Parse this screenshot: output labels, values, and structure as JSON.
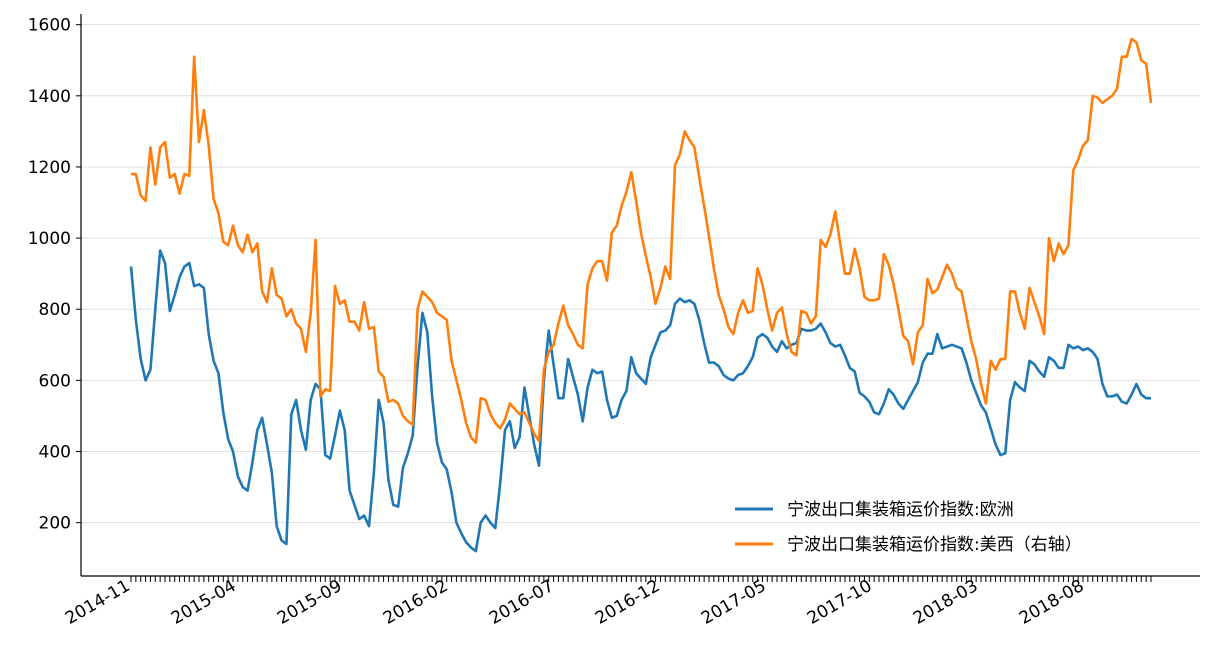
{
  "chart_data": {
    "type": "line",
    "title": "",
    "xlabel": "",
    "ylabel": "",
    "x_tick_labels": [
      "2014-11",
      "2015-04",
      "2015-09",
      "2016-02",
      "2016-07",
      "2016-12",
      "2017-05",
      "2017-10",
      "2018-03",
      "2018-08"
    ],
    "y_ticks": [
      200,
      400,
      600,
      800,
      1000,
      1200,
      1400,
      1600
    ],
    "ylim": [
      50,
      1630
    ],
    "grid": "horizontal",
    "legend_position": "lower-right",
    "series": [
      {
        "name": "宁波出口集装箱运价指数:欧洲",
        "color": "#1f77b4",
        "axis": "left",
        "values": [
          920,
          770,
          660,
          600,
          630,
          800,
          965,
          930,
          795,
          840,
          890,
          920,
          930,
          865,
          870,
          860,
          730,
          655,
          620,
          510,
          435,
          400,
          330,
          300,
          290,
          370,
          460,
          495,
          420,
          340,
          190,
          150,
          140,
          505,
          545,
          460,
          405,
          545,
          590,
          575,
          390,
          380,
          445,
          515,
          460,
          290,
          250,
          210,
          220,
          190,
          340,
          545,
          480,
          320,
          250,
          245,
          355,
          395,
          445,
          640,
          790,
          735,
          555,
          425,
          370,
          350,
          285,
          200,
          170,
          145,
          130,
          120,
          200,
          220,
          200,
          185,
          310,
          460,
          485,
          410,
          440,
          580,
          500,
          420,
          360,
          600,
          740,
          645,
          550,
          550,
          660,
          610,
          560,
          485,
          580,
          630,
          620,
          625,
          545,
          495,
          500,
          545,
          570,
          665,
          620,
          605,
          590,
          665,
          700,
          735,
          740,
          755,
          815,
          830,
          820,
          825,
          815,
          770,
          705,
          650,
          650,
          640,
          615,
          605,
          600,
          615,
          620,
          640,
          665,
          720,
          730,
          720,
          695,
          680,
          710,
          690,
          700,
          705,
          745,
          740,
          740,
          745,
          760,
          735,
          705,
          695,
          700,
          670,
          635,
          625,
          565,
          555,
          540,
          510,
          505,
          535,
          575,
          560,
          535,
          520,
          545,
          570,
          595,
          650,
          675,
          675,
          730,
          690,
          695,
          700,
          695,
          690,
          650,
          600,
          565,
          530,
          510,
          465,
          420,
          390,
          395,
          545,
          595,
          580,
          570,
          655,
          645,
          625,
          610,
          665,
          655,
          635,
          635,
          700,
          690,
          695,
          685,
          690,
          680,
          660,
          590,
          555,
          555,
          560,
          540,
          535,
          560,
          590,
          560,
          550,
          550
        ]
      },
      {
        "name": "宁波出口集装箱运价指数:美西（右轴）",
        "color": "#ff7f0e",
        "axis": "right",
        "values": [
          1180,
          1180,
          1120,
          1105,
          1255,
          1150,
          1255,
          1270,
          1170,
          1180,
          1125,
          1180,
          1175,
          1510,
          1270,
          1360,
          1260,
          1110,
          1070,
          990,
          980,
          1035,
          980,
          960,
          1010,
          960,
          985,
          850,
          820,
          915,
          840,
          830,
          780,
          800,
          760,
          745,
          680,
          790,
          995,
          555,
          575,
          570,
          865,
          815,
          825,
          765,
          765,
          740,
          820,
          745,
          750,
          625,
          610,
          540,
          545,
          535,
          500,
          485,
          475,
          800,
          850,
          835,
          820,
          790,
          780,
          770,
          655,
          600,
          545,
          480,
          440,
          425,
          550,
          545,
          505,
          480,
          465,
          490,
          535,
          520,
          505,
          510,
          480,
          450,
          430,
          630,
          680,
          700,
          760,
          810,
          755,
          730,
          700,
          690,
          870,
          915,
          935,
          935,
          880,
          1015,
          1035,
          1090,
          1130,
          1185,
          1105,
          1015,
          950,
          890,
          815,
          860,
          920,
          885,
          1205,
          1235,
          1300,
          1275,
          1255,
          1170,
          1090,
          1005,
          915,
          840,
          800,
          750,
          730,
          790,
          825,
          790,
          795,
          915,
          870,
          800,
          740,
          790,
          805,
          730,
          680,
          670,
          795,
          790,
          760,
          780,
          995,
          975,
          1010,
          1075,
          985,
          900,
          900,
          970,
          915,
          835,
          825,
          825,
          830,
          955,
          925,
          870,
          800,
          725,
          710,
          645,
          735,
          755,
          885,
          845,
          855,
          890,
          925,
          900,
          860,
          850,
          780,
          710,
          660,
          590,
          535,
          655,
          630,
          660,
          660,
          850,
          850,
          790,
          745,
          860,
          820,
          780,
          730,
          1000,
          935,
          985,
          955,
          980,
          1190,
          1220,
          1260,
          1275,
          1400,
          1395,
          1380,
          1390,
          1400,
          1420,
          1510,
          1510,
          1560,
          1550,
          1500,
          1490,
          1380
        ]
      }
    ]
  }
}
